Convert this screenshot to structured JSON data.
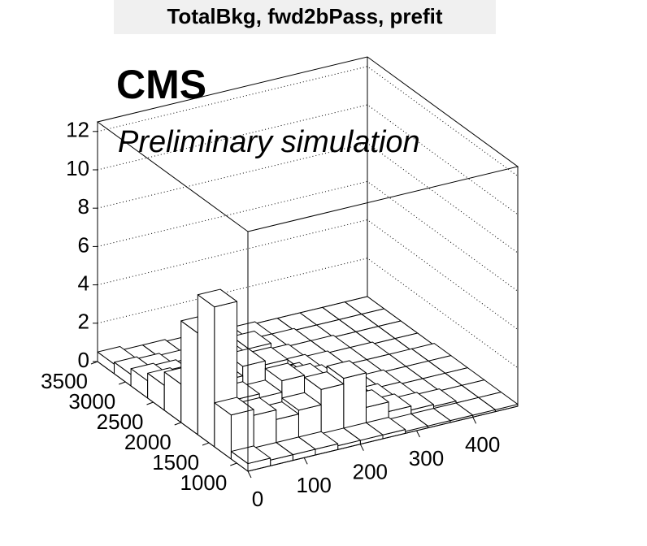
{
  "chart_data": {
    "type": "lego",
    "title": "TotalBkg, fwd2bPass, prefit",
    "annotations": [
      "CMS",
      "Preliminary simulation"
    ],
    "x_bins": [
      0,
      40,
      80,
      120,
      160,
      200,
      240,
      280,
      320,
      360,
      400,
      440,
      480
    ],
    "y_bins": [
      800,
      1100,
      1400,
      1700,
      2000,
      2300,
      2600,
      2900,
      3200,
      3500
    ],
    "values": [
      [
        0.4,
        0.3,
        0.3,
        0.3,
        0.2,
        0.2,
        0.2,
        0.1,
        0.1,
        0.1,
        0.1,
        0.1
      ],
      [
        2.3,
        2.0,
        1.5,
        1.7,
        2.5,
        2.8,
        1.0,
        0.5,
        0.3,
        0.2,
        0.1,
        0.1
      ],
      [
        7.3,
        2.2,
        2.0,
        2.6,
        2.3,
        1.5,
        0.8,
        0.4,
        0.2,
        0.1,
        0.1,
        0.1
      ],
      [
        5.3,
        2.5,
        3.0,
        2.8,
        1.6,
        1.0,
        0.5,
        0.3,
        0.2,
        0.1,
        0.1,
        0.1
      ],
      [
        2.0,
        1.8,
        2.7,
        3.0,
        1.2,
        0.8,
        0.4,
        0.2,
        0.1,
        0.1,
        0.1,
        0.1
      ],
      [
        1.3,
        1.2,
        1.5,
        1.1,
        0.8,
        0.5,
        0.3,
        0.2,
        0.1,
        0.1,
        0,
        0
      ],
      [
        0.9,
        0.8,
        0.7,
        0.6,
        0.5,
        0.3,
        0.2,
        0.1,
        0.1,
        0,
        0,
        0
      ],
      [
        0.6,
        0.5,
        0.4,
        0.3,
        0.3,
        0.2,
        0.1,
        0.1,
        0,
        0,
        0,
        0
      ],
      [
        0.5,
        0.3,
        0.3,
        0.2,
        0.2,
        0.1,
        0.1,
        0,
        0,
        0,
        0,
        0
      ]
    ],
    "color": "#ffffff",
    "xlim": [
      0,
      480
    ],
    "ylim": [
      800,
      3500
    ],
    "zlim": [
      0,
      12.5
    ],
    "xticks": [
      0,
      100,
      200,
      300,
      400
    ],
    "yticks": [
      1000,
      1500,
      2000,
      2500,
      3000,
      3500
    ],
    "zticks": [
      0,
      2,
      4,
      6,
      8,
      10,
      12
    ],
    "grid": true
  }
}
